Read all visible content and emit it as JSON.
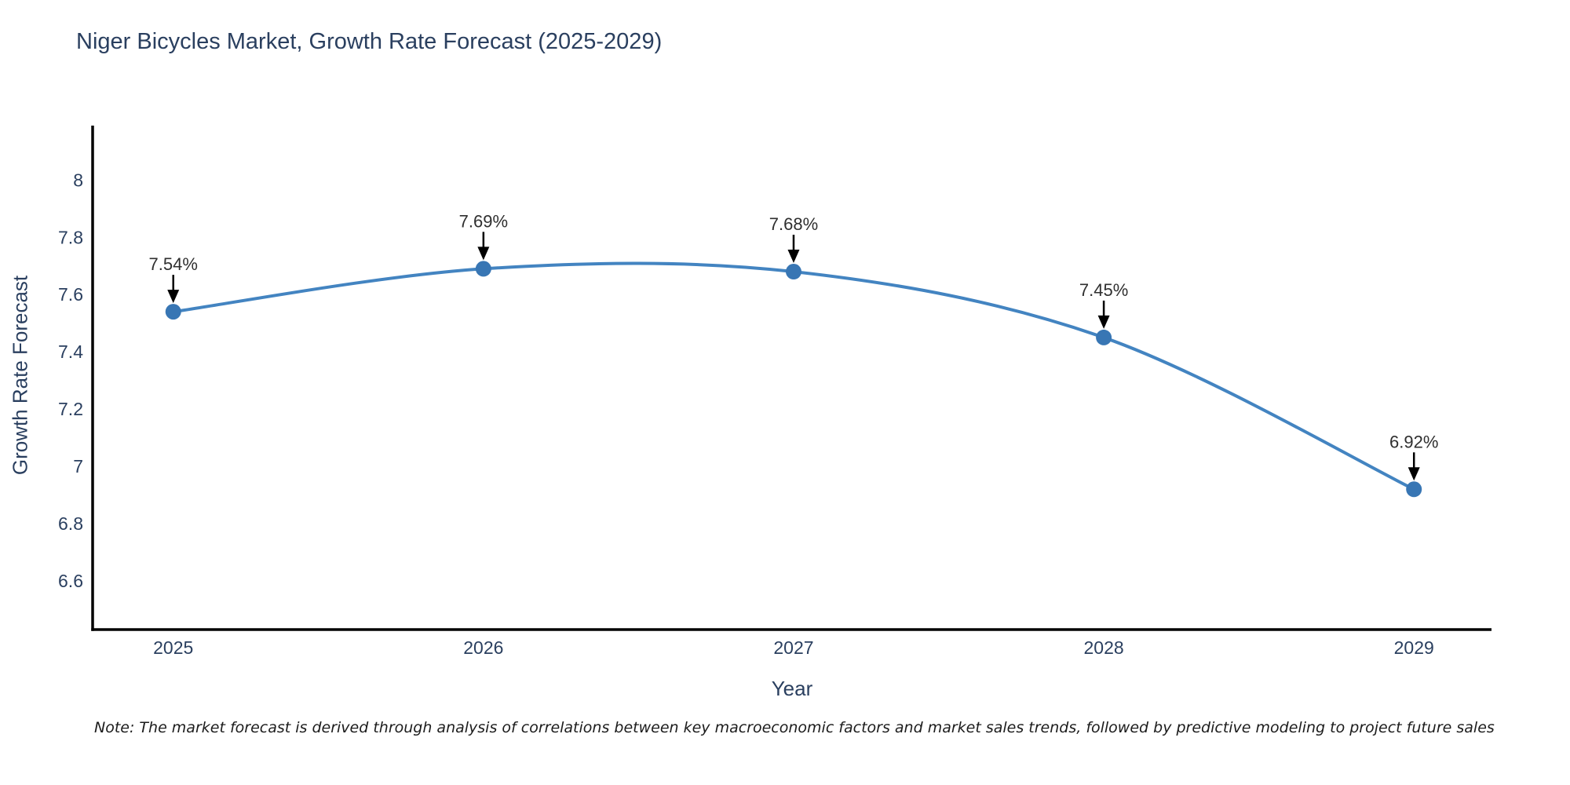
{
  "title": "Niger Bicycles Market, Growth Rate Forecast (2025-2029)",
  "note": "Note: The market forecast is derived through analysis of correlations between key macroeconomic factors and market sales trends, followed by predictive modeling to project future sales",
  "chart_data": {
    "type": "line",
    "title": "Niger Bicycles Market, Growth Rate Forecast (2025-2029)",
    "xlabel": "Year",
    "ylabel": "Growth Rate Forecast",
    "x": [
      2025,
      2026,
      2027,
      2028,
      2029
    ],
    "values": [
      7.54,
      7.69,
      7.68,
      7.45,
      6.92
    ],
    "point_labels": [
      "7.54%",
      "7.69%",
      "7.68%",
      "7.45%",
      "6.92%"
    ],
    "xtick_labels": [
      "2025",
      "2026",
      "2027",
      "2028",
      "2029"
    ],
    "yticks": [
      6.6,
      6.8,
      7.0,
      7.2,
      7.4,
      7.6,
      7.8,
      8.0
    ],
    "ytick_labels": [
      "6.6",
      "6.8",
      "7",
      "7.2",
      "7.4",
      "7.6",
      "7.8",
      "8"
    ],
    "xlim": [
      2024.74,
      2029.25
    ],
    "ylim": [
      6.43,
      8.19
    ],
    "grid": false,
    "legend": "none",
    "line_shape": "spline",
    "line_color": "#4384c1",
    "marker_color": "#3876b4",
    "axis_color": "#000000",
    "label_color": "#2a3f5f",
    "annotation_color": "#2f2f2f"
  }
}
